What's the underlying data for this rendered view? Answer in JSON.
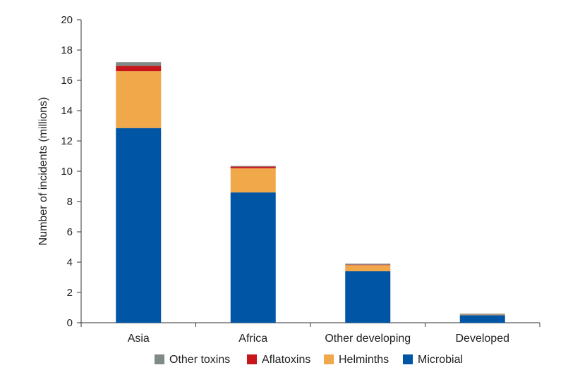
{
  "chart_data": {
    "type": "bar",
    "stacked": true,
    "title": "",
    "xlabel": "",
    "ylabel": "Number of incidents (millions)",
    "ylim": [
      0,
      20
    ],
    "yticks": [
      "0",
      "2",
      "4",
      "6",
      "8",
      "10",
      "12",
      "14",
      "16",
      "18",
      "20"
    ],
    "categories": [
      "Asia",
      "Africa",
      "Other developing",
      "Developed"
    ],
    "series": [
      {
        "name": "Microbial",
        "color": "#0055a5",
        "values": [
          12.85,
          8.6,
          3.4,
          0.5
        ]
      },
      {
        "name": "Helminths",
        "color": "#f0a84a",
        "values": [
          3.75,
          1.6,
          0.4,
          0.03
        ]
      },
      {
        "name": "Aflatoxins",
        "color": "#c8161d",
        "values": [
          0.35,
          0.1,
          0.03,
          0.01
        ]
      },
      {
        "name": "Other toxins",
        "color": "#808a86",
        "values": [
          0.25,
          0.05,
          0.07,
          0.06
        ]
      }
    ],
    "legend_order": [
      "Other toxins",
      "Aflatoxins",
      "Helminths",
      "Microbial"
    ],
    "legend_position": "bottom",
    "grid": false
  }
}
